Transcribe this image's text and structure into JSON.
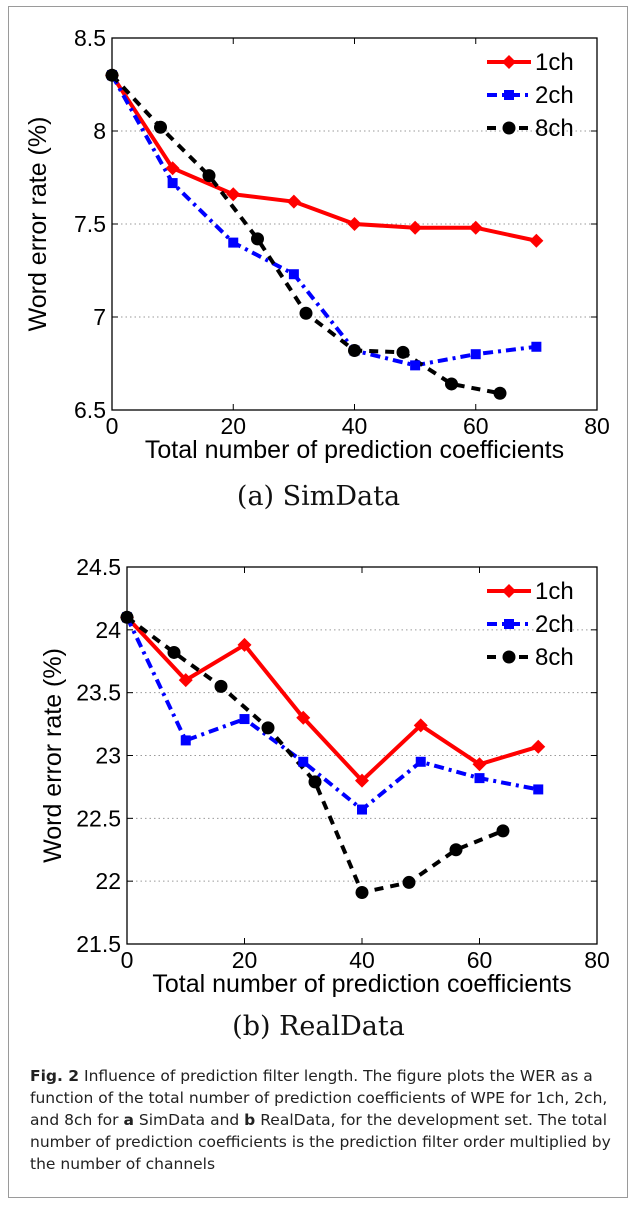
{
  "chart_data": [
    {
      "type": "line",
      "subcaption": "(a) SimData",
      "xlabel": "Total number of prediction coefficients",
      "ylabel": "Word error rate (%)",
      "xlim": [
        0,
        80
      ],
      "ylim": [
        6.5,
        8.5
      ],
      "xticks": [
        0,
        20,
        40,
        60,
        80
      ],
      "yticks": [
        6.5,
        7,
        7.5,
        8,
        8.5
      ],
      "ytick_labels": [
        "6.5",
        "7",
        "7.5",
        "8",
        "8.5"
      ],
      "grid": "horizontal dotted",
      "legend_position": "top-right",
      "series": [
        {
          "name": "1ch",
          "color": "#ff0000",
          "dash": "solid",
          "marker": "diamond",
          "x": [
            0,
            10,
            20,
            30,
            40,
            50,
            60,
            70
          ],
          "y": [
            8.3,
            7.8,
            7.66,
            7.62,
            7.5,
            7.48,
            7.48,
            7.41
          ]
        },
        {
          "name": "2ch",
          "color": "#0000ff",
          "dash": "dashdot",
          "marker": "square",
          "x": [
            0,
            10,
            20,
            30,
            40,
            50,
            60,
            70
          ],
          "y": [
            8.3,
            7.72,
            7.4,
            7.23,
            6.82,
            6.74,
            6.8,
            6.84
          ]
        },
        {
          "name": "8ch",
          "color": "#000000",
          "dash": "dashed",
          "marker": "circle",
          "x": [
            0,
            8,
            16,
            24,
            32,
            40,
            48,
            56,
            64
          ],
          "y": [
            8.3,
            8.02,
            7.76,
            7.42,
            7.02,
            6.82,
            6.81,
            6.64,
            6.59
          ]
        }
      ]
    },
    {
      "type": "line",
      "subcaption": "(b) RealData",
      "xlabel": "Total number of prediction coefficients",
      "ylabel": "Word error rate (%)",
      "xlim": [
        0,
        80
      ],
      "ylim": [
        21.5,
        24.5
      ],
      "xticks": [
        0,
        20,
        40,
        60,
        80
      ],
      "yticks": [
        21.5,
        22,
        22.5,
        23,
        23.5,
        24,
        24.5
      ],
      "ytick_labels": [
        "21.5",
        "22",
        "22.5",
        "23",
        "23.5",
        "24",
        "24.5"
      ],
      "grid": "horizontal dotted",
      "legend_position": "top-right",
      "series": [
        {
          "name": "1ch",
          "color": "#ff0000",
          "dash": "solid",
          "marker": "diamond",
          "x": [
            0,
            10,
            20,
            30,
            40,
            50,
            60,
            70
          ],
          "y": [
            24.1,
            23.6,
            23.88,
            23.3,
            22.8,
            23.24,
            22.93,
            23.07
          ]
        },
        {
          "name": "2ch",
          "color": "#0000ff",
          "dash": "dashdot",
          "marker": "square",
          "x": [
            0,
            10,
            20,
            30,
            40,
            50,
            60,
            70
          ],
          "y": [
            24.1,
            23.12,
            23.29,
            22.95,
            22.57,
            22.95,
            22.82,
            22.73
          ]
        },
        {
          "name": "8ch",
          "color": "#000000",
          "dash": "dashed",
          "marker": "circle",
          "x": [
            0,
            8,
            16,
            24,
            32,
            40,
            48,
            56,
            64
          ],
          "y": [
            24.1,
            23.82,
            23.55,
            23.22,
            22.79,
            21.91,
            21.99,
            22.25,
            22.4
          ]
        }
      ]
    }
  ],
  "caption": {
    "label": "Fig. 2",
    "text": "Influence of prediction filter length. The figure plots the WER as a function of the total number of prediction coefficients of WPE for 1ch, 2ch, and 8ch for",
    "a_label": "a",
    "a_text": "SimData and",
    "b_label": "b",
    "b_text": "RealData, for the development set. The total number of prediction coefficients is the prediction filter order multiplied by the number of channels"
  }
}
